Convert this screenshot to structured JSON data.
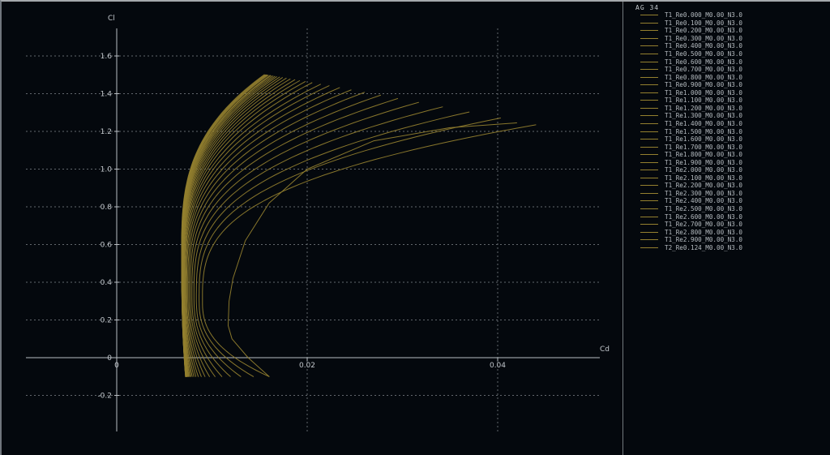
{
  "colors": {
    "background": "#04080d",
    "grid": "#62676d",
    "axis": "#b9bec3",
    "curve": "#94802f",
    "tick_text": "#c3c8cd",
    "legend_text": "#b6bcc1",
    "divider": "#878d92"
  },
  "legend": {
    "title": "AG 34"
  },
  "chart_data": {
    "type": "line",
    "title": "AG 34",
    "xlabel": "Cd",
    "ylabel": "Cl",
    "xlim": [
      0,
      0.0507
    ],
    "ylim": [
      -0.39,
      1.75
    ],
    "grid": "dashed",
    "legend_position": "right-panel",
    "x_ticks": [
      {
        "v": 0,
        "label": "0"
      },
      {
        "v": 0.02,
        "label": "0.02"
      },
      {
        "v": 0.04,
        "label": "0.04"
      }
    ],
    "y_ticks": [
      {
        "v": 1.6,
        "label": "1.6"
      },
      {
        "v": 1.4,
        "label": "1.4"
      },
      {
        "v": 1.2,
        "label": "1.2"
      },
      {
        "v": 1.0,
        "label": "1.0"
      },
      {
        "v": 0.8,
        "label": "0.8"
      },
      {
        "v": 0.6,
        "label": "0.6"
      },
      {
        "v": 0.4,
        "label": "0.4"
      },
      {
        "v": 0.2,
        "label": "0.2"
      },
      {
        "v": 0,
        "label": "0"
      },
      {
        "v": -0.2,
        "label": "-0.2"
      }
    ],
    "model": {
      "comment": "polar params = [cl_min, cd_at_clmin, cl_at_cdmin, cd_min, cl_max, cd_at_clmax]",
      "lower_exp": 2.5,
      "upper_exp": 3.0
    },
    "series": [
      {
        "name": "T1_Re0.000_M0.00_N3.0",
        "params": [
          -0.1,
          0.016,
          0.3,
          0.009,
          1.235,
          0.044
        ]
      },
      {
        "name": "T1_Re0.100_M0.00_N3.0",
        "params": [
          -0.1,
          0.01435,
          0.309,
          0.00865,
          1.271,
          0.0403
        ]
      },
      {
        "name": "T1_Re0.200_M0.00_N3.0",
        "params": [
          -0.1,
          0.01302,
          0.317,
          0.00836,
          1.303,
          0.037
        ]
      },
      {
        "name": "T1_Re0.300_M0.00_N3.0",
        "params": [
          -0.1,
          0.01193,
          0.326,
          0.00811,
          1.33,
          0.0342
        ]
      },
      {
        "name": "T1_Re0.400_M0.00_N3.0",
        "params": [
          -0.1,
          0.01104,
          0.334,
          0.0079,
          1.354,
          0.0317
        ]
      },
      {
        "name": "T1_Re0.500_M0.00_N3.0",
        "params": [
          -0.1,
          0.01032,
          0.343,
          0.00773,
          1.374,
          0.0295
        ]
      },
      {
        "name": "T1_Re0.600_M0.00_N3.0",
        "params": [
          -0.1,
          0.00974,
          0.352,
          0.00758,
          1.392,
          0.0277
        ]
      },
      {
        "name": "T1_Re0.700_M0.00_N3.0",
        "params": [
          -0.1,
          0.00927,
          0.36,
          0.00746,
          1.407,
          0.026
        ]
      },
      {
        "name": "T1_Re0.800_M0.00_N3.0",
        "params": [
          -0.1,
          0.00888,
          0.369,
          0.00735,
          1.42,
          0.0246
        ]
      },
      {
        "name": "T1_Re0.900_M0.00_N3.0",
        "params": [
          -0.1,
          0.00856,
          0.378,
          0.00727,
          1.432,
          0.0234
        ]
      },
      {
        "name": "T1_Re1.000_M0.00_N3.0",
        "params": [
          -0.1,
          0.00831,
          0.386,
          0.00719,
          1.442,
          0.0223
        ]
      },
      {
        "name": "T1_Re1.100_M0.00_N3.0",
        "params": [
          -0.1,
          0.0081,
          0.395,
          0.00713,
          1.45,
          0.0214
        ]
      },
      {
        "name": "T1_Re1.200_M0.00_N3.0",
        "params": [
          -0.1,
          0.00793,
          0.403,
          0.00708,
          1.458,
          0.0205
        ]
      },
      {
        "name": "T1_Re1.300_M0.00_N3.0",
        "params": [
          -0.1,
          0.0078,
          0.412,
          0.00703,
          1.464,
          0.0198
        ]
      },
      {
        "name": "T1_Re1.400_M0.00_N3.0",
        "params": [
          -0.1,
          0.00768,
          0.421,
          0.007,
          1.469,
          0.0192
        ]
      },
      {
        "name": "T1_Re1.500_M0.00_N3.0",
        "params": [
          -0.1,
          0.00759,
          0.429,
          0.00697,
          1.474,
          0.0187
        ]
      },
      {
        "name": "T1_Re1.600_M0.00_N3.0",
        "params": [
          -0.1,
          0.00752,
          0.438,
          0.00694,
          1.478,
          0.0182
        ]
      },
      {
        "name": "T1_Re1.700_M0.00_N3.0",
        "params": [
          -0.1,
          0.00746,
          0.447,
          0.00692,
          1.482,
          0.0178
        ]
      },
      {
        "name": "T1_Re1.800_M0.00_N3.0",
        "params": [
          -0.1,
          0.00741,
          0.455,
          0.0069,
          1.485,
          0.0174
        ]
      },
      {
        "name": "T1_Re1.900_M0.00_N3.0",
        "params": [
          -0.1,
          0.00737,
          0.464,
          0.00688,
          1.488,
          0.0171
        ]
      },
      {
        "name": "T1_Re2.000_M0.00_N3.0",
        "params": [
          -0.1,
          0.00734,
          0.472,
          0.00687,
          1.49,
          0.0168
        ]
      },
      {
        "name": "T1_Re2.100_M0.00_N3.0",
        "params": [
          -0.1,
          0.00731,
          0.481,
          0.00686,
          1.492,
          0.0166
        ]
      },
      {
        "name": "T1_Re2.200_M0.00_N3.0",
        "params": [
          -0.1,
          0.00729,
          0.49,
          0.00685,
          1.494,
          0.0164
        ]
      },
      {
        "name": "T1_Re2.300_M0.00_N3.0",
        "params": [
          -0.1,
          0.00727,
          0.498,
          0.00684,
          1.495,
          0.0162
        ]
      },
      {
        "name": "T1_Re2.400_M0.00_N3.0",
        "params": [
          -0.1,
          0.00726,
          0.507,
          0.00684,
          1.497,
          0.0161
        ]
      },
      {
        "name": "T1_Re2.500_M0.00_N3.0",
        "params": [
          -0.1,
          0.00725,
          0.516,
          0.00683,
          1.498,
          0.0159
        ]
      },
      {
        "name": "T1_Re2.600_M0.00_N3.0",
        "params": [
          -0.1,
          0.00724,
          0.524,
          0.00682,
          1.499,
          0.0158
        ]
      },
      {
        "name": "T1_Re2.700_M0.00_N3.0",
        "params": [
          -0.1,
          0.00723,
          0.533,
          0.00682,
          1.5,
          0.0157
        ]
      },
      {
        "name": "T1_Re2.800_M0.00_N3.0",
        "params": [
          -0.1,
          0.00723,
          0.541,
          0.00682,
          1.5,
          0.0156
        ]
      },
      {
        "name": "T1_Re2.900_M0.00_N3.0",
        "params": [
          -0.1,
          0.00722,
          0.55,
          0.00681,
          1.501,
          0.0155
        ]
      },
      {
        "name": "T2_Re0.124_M0.00_N3.0",
        "points": [
          [
            0.016,
            -0.1
          ],
          [
            0.0138,
            0.0
          ],
          [
            0.0121,
            0.1
          ],
          [
            0.0117,
            0.17
          ],
          [
            0.0118,
            0.3
          ],
          [
            0.0122,
            0.42
          ],
          [
            0.0135,
            0.62
          ],
          [
            0.016,
            0.82
          ],
          [
            0.02,
            1.0
          ],
          [
            0.027,
            1.15
          ],
          [
            0.035,
            1.22
          ],
          [
            0.042,
            1.245
          ]
        ]
      }
    ]
  }
}
